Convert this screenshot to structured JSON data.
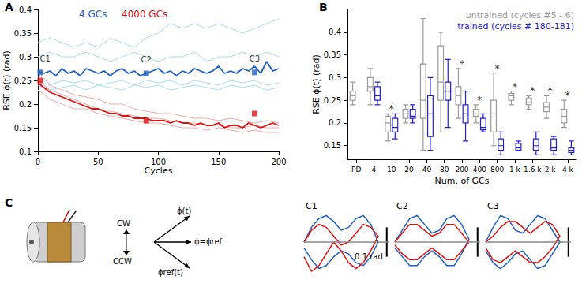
{
  "chart_data": [
    {
      "type": "line",
      "panel": "A",
      "xlabel": "Cycles",
      "ylabel": "RSE ϕ(t) (rad)",
      "xlim": [
        0,
        200
      ],
      "xticks": [
        0,
        50,
        100,
        150,
        200
      ],
      "ylim": [
        0.1,
        0.4
      ],
      "yticks": [
        0.1,
        0.15,
        0.2,
        0.25,
        0.3,
        0.35,
        0.4
      ],
      "x": [
        0,
        5,
        10,
        15,
        20,
        25,
        30,
        35,
        40,
        45,
        50,
        55,
        60,
        65,
        70,
        75,
        80,
        85,
        90,
        95,
        100,
        105,
        110,
        115,
        120,
        125,
        130,
        135,
        140,
        145,
        150,
        155,
        160,
        165,
        170,
        175,
        180,
        185,
        190,
        195,
        200
      ],
      "series": [
        {
          "color": "#a8dcf2",
          "x": [
            0,
            10,
            20,
            30,
            40,
            50,
            60,
            70,
            80,
            90,
            100,
            110,
            120,
            130,
            140,
            150,
            160,
            170,
            180,
            190,
            200
          ],
          "values": [
            0.33,
            0.34,
            0.33,
            0.32,
            0.33,
            0.32,
            0.34,
            0.33,
            0.32,
            0.34,
            0.35,
            0.37,
            0.36,
            0.37,
            0.36,
            0.37,
            0.36,
            0.35,
            0.36,
            0.37,
            0.38
          ]
        },
        {
          "color": "#a8dcf2",
          "x": [
            0,
            10,
            20,
            30,
            40,
            50,
            60,
            70,
            80,
            90,
            100,
            110,
            120,
            130,
            140,
            150,
            160,
            170,
            180,
            190,
            200
          ],
          "values": [
            0.3,
            0.31,
            0.3,
            0.3,
            0.31,
            0.3,
            0.29,
            0.3,
            0.31,
            0.3,
            0.29,
            0.3,
            0.3,
            0.31,
            0.29,
            0.3,
            0.3,
            0.31,
            0.3,
            0.31,
            0.3
          ]
        },
        {
          "color": "#a8dcf2",
          "x": [
            0,
            10,
            20,
            30,
            40,
            50,
            60,
            70,
            80,
            90,
            100,
            110,
            120,
            130,
            140,
            150,
            160,
            170,
            180,
            190,
            200
          ],
          "values": [
            0.24,
            0.23,
            0.235,
            0.24,
            0.23,
            0.24,
            0.235,
            0.23,
            0.24,
            0.235,
            0.24,
            0.23,
            0.235,
            0.24,
            0.235,
            0.23,
            0.24,
            0.235,
            0.24,
            0.23,
            0.235
          ]
        },
        {
          "color": "#a8dcf2",
          "x": [
            0,
            10,
            20,
            30,
            40,
            50,
            60,
            70,
            80,
            90,
            100,
            110,
            120,
            130,
            140,
            150,
            160,
            170,
            180,
            190,
            200
          ],
          "values": [
            0.25,
            0.24,
            0.25,
            0.245,
            0.25,
            0.24,
            0.245,
            0.25,
            0.24,
            0.25,
            0.245,
            0.25,
            0.24,
            0.25,
            0.245,
            0.24,
            0.25,
            0.245,
            0.25,
            0.24,
            0.245
          ]
        },
        {
          "color": "#f4a6a6",
          "x": [
            0,
            10,
            20,
            30,
            40,
            50,
            60,
            70,
            80,
            90,
            100,
            110,
            120,
            130,
            140,
            150,
            160,
            170,
            180,
            190,
            200
          ],
          "values": [
            0.27,
            0.24,
            0.23,
            0.22,
            0.215,
            0.21,
            0.2,
            0.2,
            0.19,
            0.185,
            0.18,
            0.18,
            0.175,
            0.17,
            0.17,
            0.165,
            0.17,
            0.165,
            0.16,
            0.165,
            0.16
          ]
        },
        {
          "color": "#f4a6a6",
          "x": [
            0,
            10,
            20,
            30,
            40,
            50,
            60,
            70,
            80,
            90,
            100,
            110,
            120,
            130,
            140,
            150,
            160,
            170,
            180,
            190,
            200
          ],
          "values": [
            0.23,
            0.21,
            0.2,
            0.19,
            0.19,
            0.18,
            0.175,
            0.17,
            0.165,
            0.16,
            0.16,
            0.155,
            0.15,
            0.15,
            0.145,
            0.15,
            0.145,
            0.14,
            0.145,
            0.14,
            0.14
          ]
        },
        {
          "color": "#f4a6a6",
          "x": [
            0,
            10,
            20,
            30,
            40,
            50,
            60,
            70,
            80,
            90,
            100,
            110,
            120,
            130,
            140,
            150,
            160,
            170,
            180,
            190,
            200
          ],
          "values": [
            0.25,
            0.23,
            0.22,
            0.21,
            0.2,
            0.19,
            0.185,
            0.18,
            0.175,
            0.17,
            0.17,
            0.165,
            0.16,
            0.16,
            0.155,
            0.155,
            0.15,
            0.15,
            0.155,
            0.15,
            0.15
          ]
        },
        {
          "name": "4 GCs",
          "color": "#1f5fbf",
          "markers": [
            [
              2,
              0.267
            ],
            [
              90,
              0.265
            ],
            [
              180,
              0.267
            ]
          ],
          "values": [
            0.27,
            0.265,
            0.27,
            0.26,
            0.275,
            0.265,
            0.27,
            0.26,
            0.275,
            0.27,
            0.265,
            0.27,
            0.26,
            0.27,
            0.275,
            0.265,
            0.27,
            0.26,
            0.265,
            0.27,
            0.275,
            0.265,
            0.27,
            0.26,
            0.27,
            0.265,
            0.275,
            0.27,
            0.265,
            0.27,
            0.28,
            0.265,
            0.27,
            0.265,
            0.275,
            0.27,
            0.28,
            0.265,
            0.29,
            0.27,
            0.275
          ]
        },
        {
          "name": "4000 GCs",
          "color": "#e01010",
          "markers": [
            [
              2,
              0.25
            ],
            [
              90,
              0.165
            ],
            [
              180,
              0.18
            ]
          ],
          "values": [
            0.245,
            0.235,
            0.225,
            0.22,
            0.215,
            0.21,
            0.205,
            0.2,
            0.195,
            0.19,
            0.19,
            0.185,
            0.18,
            0.18,
            0.175,
            0.175,
            0.17,
            0.17,
            0.17,
            0.165,
            0.165,
            0.165,
            0.16,
            0.165,
            0.16,
            0.16,
            0.155,
            0.16,
            0.155,
            0.155,
            0.16,
            0.15,
            0.155,
            0.155,
            0.15,
            0.16,
            0.155,
            0.15,
            0.155,
            0.16,
            0.155
          ]
        }
      ],
      "annotations": [
        {
          "text": "C1",
          "x": 6,
          "y": 0.285
        },
        {
          "text": "C2",
          "x": 90,
          "y": 0.282
        },
        {
          "text": "C3",
          "x": 180,
          "y": 0.285
        }
      ]
    },
    {
      "type": "boxplot",
      "panel": "B",
      "xlabel": "Num. of GCs",
      "ylabel": "RSE ϕ(t) (rad)",
      "categories": [
        "PD",
        "4",
        "10",
        "20",
        "40",
        "80",
        "200",
        "400",
        "800",
        "1 k",
        "1.6 k",
        "2 k",
        "4 k"
      ],
      "ylim": [
        0.12,
        0.45
      ],
      "yticks": [
        0.15,
        0.2,
        0.25,
        0.3,
        0.35,
        0.4
      ],
      "series": [
        {
          "name": "untrained (cycles #5 - 6)",
          "color": "#9a9a9a",
          "values": [
            [
              0.24,
              0.25,
              0.26,
              0.27,
              0.29
            ],
            [
              0.24,
              0.27,
              0.28,
              0.3,
              0.32
            ],
            [
              0.16,
              0.18,
              0.2,
              0.215,
              0.22
            ],
            [
              0.2,
              0.21,
              0.22,
              0.23,
              0.24
            ],
            [
              0.14,
              0.21,
              0.25,
              0.33,
              0.43
            ],
            [
              0.18,
              0.25,
              0.29,
              0.37,
              0.4
            ],
            [
              0.21,
              0.24,
              0.26,
              0.28,
              0.32
            ],
            [
              0.2,
              0.215,
              0.22,
              0.23,
              0.24
            ],
            [
              0.15,
              0.18,
              0.22,
              0.25,
              0.31
            ],
            [
              0.24,
              0.25,
              0.26,
              0.265,
              0.27
            ],
            [
              0.23,
              0.24,
              0.245,
              0.255,
              0.26
            ],
            [
              0.21,
              0.225,
              0.235,
              0.245,
              0.26
            ],
            [
              0.19,
              0.2,
              0.215,
              0.23,
              0.25
            ]
          ]
        },
        {
          "name": "trained (cycles # 180-181)",
          "color": "#2222cc",
          "values": [
            null,
            [
              0.24,
              0.25,
              0.26,
              0.28,
              0.29
            ],
            [
              0.165,
              0.18,
              0.19,
              0.21,
              0.22
            ],
            [
              0.2,
              0.21,
              0.215,
              0.23,
              0.24
            ],
            [
              0.14,
              0.17,
              0.22,
              0.26,
              0.3
            ],
            [
              0.19,
              0.25,
              0.27,
              0.29,
              0.34
            ],
            [
              0.16,
              0.2,
              0.22,
              0.24,
              0.27
            ],
            [
              0.18,
              0.185,
              0.19,
              0.21,
              0.22
            ],
            [
              0.13,
              0.14,
              0.15,
              0.165,
              0.18
            ],
            [
              0.14,
              0.14,
              0.145,
              0.155,
              0.16
            ],
            [
              0.13,
              0.14,
              0.15,
              0.165,
              0.18
            ],
            [
              0.13,
              0.14,
              0.145,
              0.165,
              0.17
            ],
            [
              0.13,
              0.135,
              0.14,
              0.145,
              0.16
            ]
          ]
        }
      ],
      "significance": [
        null,
        null,
        "*",
        null,
        null,
        null,
        "*",
        "*",
        "*",
        "*",
        "*",
        "*",
        "*"
      ]
    },
    {
      "type": "line",
      "title": "C1",
      "tick_labels": false,
      "xlim": [
        0,
        1.15
      ],
      "ylim": [
        -0.11,
        0.11
      ],
      "reference": 0,
      "scale_bar": {
        "value": 0.1,
        "label": "0.1 rad"
      },
      "x": [
        0,
        0.1,
        0.2,
        0.3,
        0.4,
        0.5,
        0.6,
        0.7,
        0.8,
        0.9,
        1,
        0.9,
        0.8,
        0.7,
        0.6,
        0.5,
        0.4,
        0.3,
        0.2,
        0.1,
        0
      ],
      "series": [
        {
          "color": "#1f5fbf",
          "values": [
            0,
            0.05,
            0.08,
            0.09,
            0.07,
            0.04,
            0.05,
            0.08,
            0.09,
            0.06,
            0,
            -0.05,
            -0.08,
            -0.07,
            -0.04,
            -0.03,
            -0.05,
            -0.08,
            -0.09,
            -0.06,
            -0.02
          ]
        },
        {
          "color": "#e01010",
          "values": [
            0,
            0.04,
            0.06,
            0.05,
            0.02,
            -0.01,
            0,
            0.03,
            0.06,
            0.05,
            0.02,
            -0.03,
            -0.07,
            -0.09,
            -0.07,
            -0.03,
            0,
            -0.04,
            -0.08,
            -0.1,
            -0.05
          ]
        }
      ]
    },
    {
      "type": "line",
      "title": "C2",
      "tick_labels": false,
      "xlim": [
        0,
        1.15
      ],
      "ylim": [
        -0.11,
        0.11
      ],
      "reference": 0,
      "scale_bar": {
        "value": 0.1
      },
      "x": [
        0,
        0.1,
        0.2,
        0.3,
        0.4,
        0.5,
        0.6,
        0.7,
        0.8,
        0.9,
        1,
        0.9,
        0.8,
        0.7,
        0.6,
        0.5,
        0.4,
        0.3,
        0.2,
        0.1,
        0
      ],
      "series": [
        {
          "color": "#1f5fbf",
          "values": [
            0,
            0.04,
            0.08,
            0.09,
            0.06,
            0.03,
            0.04,
            0.08,
            0.09,
            0.06,
            0.01,
            -0.04,
            -0.08,
            -0.08,
            -0.05,
            -0.03,
            -0.05,
            -0.08,
            -0.08,
            -0.05,
            -0.02
          ]
        },
        {
          "color": "#e01010",
          "values": [
            0,
            0.03,
            0.06,
            0.06,
            0.04,
            0.02,
            0.03,
            0.06,
            0.06,
            0.03,
            0,
            -0.03,
            -0.06,
            -0.06,
            -0.04,
            -0.02,
            -0.04,
            -0.06,
            -0.06,
            -0.04,
            -0.01
          ]
        }
      ]
    },
    {
      "type": "line",
      "title": "C3",
      "tick_labels": false,
      "xlim": [
        0,
        1.15
      ],
      "ylim": [
        -0.11,
        0.11
      ],
      "reference": 0,
      "scale_bar": {
        "value": 0.1
      },
      "x": [
        0,
        0.1,
        0.2,
        0.3,
        0.4,
        0.5,
        0.6,
        0.7,
        0.8,
        0.9,
        1,
        0.9,
        0.8,
        0.7,
        0.6,
        0.5,
        0.4,
        0.3,
        0.2,
        0.1,
        0
      ],
      "series": [
        {
          "color": "#1f5fbf",
          "values": [
            0,
            0.05,
            0.09,
            0.08,
            0.04,
            0.03,
            0.06,
            0.09,
            0.08,
            0.04,
            0,
            -0.04,
            -0.08,
            -0.09,
            -0.06,
            -0.03,
            -0.04,
            -0.07,
            -0.09,
            -0.07,
            -0.03
          ]
        },
        {
          "color": "#e01010",
          "values": [
            0,
            0.02,
            0.05,
            0.07,
            0.07,
            0.05,
            0.03,
            0.05,
            0.07,
            0.06,
            0.02,
            -0.02,
            -0.05,
            -0.07,
            -0.07,
            -0.05,
            -0.03,
            -0.05,
            -0.07,
            -0.06,
            -0.02
          ]
        }
      ]
    }
  ],
  "diagram": {
    "panel": "C",
    "cw": "CW",
    "ccw": "CCW",
    "phi": "ϕ(t)",
    "phi_ref": "ϕ=ϕref",
    "phi_ref_t": "ϕref(t)"
  }
}
